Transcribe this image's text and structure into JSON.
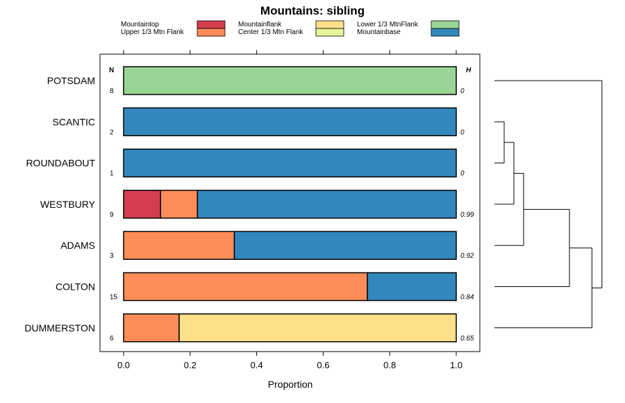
{
  "chart_data": {
    "type": "bar",
    "stacked": true,
    "orientation": "horizontal",
    "title": "Mountains: sibling",
    "xlabel": "Proportion",
    "ylabel": "",
    "xlim": [
      0,
      1
    ],
    "xticks": [
      "0.0",
      "0.2",
      "0.4",
      "0.6",
      "0.8",
      "1.0"
    ],
    "n_header": "N",
    "h_header": "H",
    "legend": [
      {
        "name": "Mountaintop",
        "color": "#d53e4f"
      },
      {
        "name": "Upper 1/3 Mtn Flank",
        "color": "#fc8d59"
      },
      {
        "name": "Mountainflank",
        "color": "#fee08b"
      },
      {
        "name": "Center 1/3 Mtn Flank",
        "color": "#e6f598"
      },
      {
        "name": "Lower 1/3 MtnFlank",
        "color": "#99d594"
      },
      {
        "name": "Mountainbase",
        "color": "#3288bd"
      }
    ],
    "categories": [
      "POTSDAM",
      "SCANTIC",
      "ROUNDABOUT",
      "WESTBURY",
      "ADAMS",
      "COLTON",
      "DUMMERSTON"
    ],
    "n": [
      "8",
      "2",
      "1",
      "9",
      "3",
      "15",
      "6"
    ],
    "h": [
      "0",
      "0",
      "0",
      "0.99",
      "0.92",
      "0.84",
      "0.65"
    ],
    "series": [
      {
        "name": "Mountaintop",
        "values": [
          0,
          0,
          0,
          0.111,
          0,
          0,
          0
        ]
      },
      {
        "name": "Upper 1/3 Mtn Flank",
        "values": [
          0,
          0,
          0,
          0.111,
          0.333,
          0.733,
          0.167
        ]
      },
      {
        "name": "Mountainflank",
        "values": [
          0,
          0,
          0,
          0,
          0,
          0,
          0.833
        ]
      },
      {
        "name": "Center 1/3 Mtn Flank",
        "values": [
          0,
          0,
          0,
          0,
          0,
          0,
          0
        ]
      },
      {
        "name": "Lower 1/3 MtnFlank",
        "values": [
          1,
          0,
          0,
          0,
          0,
          0,
          0
        ]
      },
      {
        "name": "Mountainbase",
        "values": [
          0,
          1,
          1,
          0.778,
          0.667,
          0.267,
          0
        ]
      }
    ],
    "dendrogram": {
      "merges": [
        {
          "a": "SCANTIC",
          "b": "ROUNDABOUT",
          "height": 0.0
        },
        {
          "a": "m1",
          "b": "WESTBURY",
          "height": 0.1
        },
        {
          "a": "m2",
          "b": "ADAMS",
          "height": 0.22
        },
        {
          "a": "m3",
          "b": "COLTON",
          "height": 0.6
        },
        {
          "a": "m4",
          "b": "DUMMERSTON",
          "height": 0.78
        },
        {
          "a": "m5",
          "b": "POTSDAM",
          "height": 0.86
        }
      ],
      "max_height": 1.0
    }
  }
}
